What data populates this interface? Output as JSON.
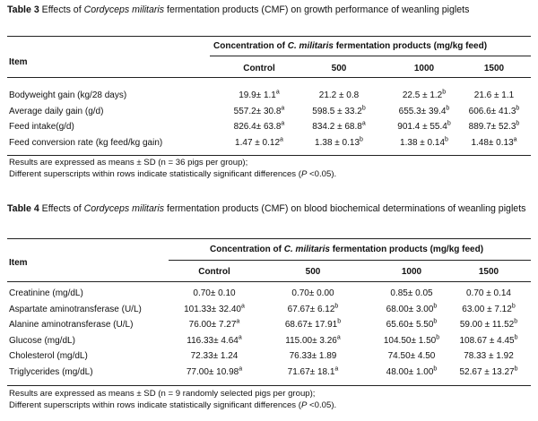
{
  "table3": {
    "label": "Table 3",
    "title_pre": "Effects of ",
    "title_italic": "Cordyceps militaris",
    "title_post": " fermentation products (CMF) on growth performance of weanling piglets",
    "item_header": "Item",
    "concentration_pre": "Concentration of ",
    "concentration_italic": "C. militaris",
    "concentration_post": " fermentation products (mg/kg feed)",
    "columns": [
      "Control",
      "500",
      "1000",
      "1500"
    ],
    "rows": [
      {
        "label": "Bodyweight gain (kg/28 days)",
        "cells": [
          {
            "v": "19.9± 1.1",
            "s": "a"
          },
          {
            "v": "21.2 ± 0.8",
            "s": ""
          },
          {
            "v": "22.5 ± 1.2",
            "s": "b"
          },
          {
            "v": "21.6 ± 1.1",
            "s": ""
          }
        ]
      },
      {
        "label": "Average daily gain (g/d)",
        "cells": [
          {
            "v": "557.2± 30.8",
            "s": "a"
          },
          {
            "v": "598.5 ± 33.2",
            "s": "b"
          },
          {
            "v": "655.3± 39.4",
            "s": "b"
          },
          {
            "v": "606.6± 41.3",
            "s": "b"
          }
        ]
      },
      {
        "label": "Feed intake(g/d)",
        "cells": [
          {
            "v": "826.4± 63.8",
            "s": "a"
          },
          {
            "v": "834.2 ± 68.8",
            "s": "a"
          },
          {
            "v": "901.4 ± 55.4",
            "s": "b"
          },
          {
            "v": "889.7± 52.3",
            "s": "b"
          }
        ]
      },
      {
        "label": "Feed conversion rate (kg feed/kg gain)",
        "cells": [
          {
            "v": "1.47 ± 0.12",
            "s": "a"
          },
          {
            "v": "1.38 ± 0.13",
            "s": "b"
          },
          {
            "v": "1.38 ± 0.14",
            "s": "b"
          },
          {
            "v": "1.48± 0.13",
            "s": "a"
          }
        ]
      }
    ],
    "note1": "Results are expressed as means ± SD (n = 36 pigs per group);",
    "note2_pre": "Different superscripts within rows indicate statistically significant differences (",
    "note2_italic": "P",
    "note2_post": " <0.05)."
  },
  "table4": {
    "label": "Table 4",
    "title_pre": "Effects of ",
    "title_italic": "Cordyceps militaris",
    "title_post": " fermentation products (CMF) on blood biochemical determinations of weanling piglets",
    "item_header": "Item",
    "concentration_pre": "Concentration of ",
    "concentration_italic": "C. militaris",
    "concentration_post": " fermentation products (mg/kg feed)",
    "columns": [
      "Control",
      "500",
      "1000",
      "1500"
    ],
    "rows": [
      {
        "label": "Creatinine (mg/dL)",
        "cells": [
          {
            "v": "0.70± 0.10",
            "s": ""
          },
          {
            "v": "0.70± 0.00",
            "s": ""
          },
          {
            "v": "0.85± 0.05",
            "s": ""
          },
          {
            "v": "0.70 ± 0.14",
            "s": ""
          }
        ]
      },
      {
        "label": "Aspartate aminotransferase (U/L)",
        "cells": [
          {
            "v": "101.33± 32.40",
            "s": "a"
          },
          {
            "v": "67.67± 6.12",
            "s": "b"
          },
          {
            "v": "68.00± 3.00",
            "s": "b"
          },
          {
            "v": "63.00 ± 7.12",
            "s": "b"
          }
        ]
      },
      {
        "label": "Alanine aminotransferase (U/L)",
        "cells": [
          {
            "v": "76.00± 7.27",
            "s": "a"
          },
          {
            "v": "68.67± 17.91",
            "s": "b"
          },
          {
            "v": "65.60± 5.50",
            "s": "b"
          },
          {
            "v": "59.00 ± 11.52",
            "s": "b"
          }
        ]
      },
      {
        "label": "Glucose (mg/dL)",
        "cells": [
          {
            "v": "116.33± 4.64",
            "s": "a"
          },
          {
            "v": "115.00± 3.26",
            "s": "a"
          },
          {
            "v": "104.50± 1.50",
            "s": "b"
          },
          {
            "v": "108.67 ± 4.45",
            "s": "b"
          }
        ]
      },
      {
        "label": "Cholesterol (mg/dL)",
        "cells": [
          {
            "v": "72.33± 1.24",
            "s": ""
          },
          {
            "v": "76.33± 1.89",
            "s": ""
          },
          {
            "v": "74.50± 4.50",
            "s": ""
          },
          {
            "v": "78.33 ± 1.92",
            "s": ""
          }
        ]
      },
      {
        "label": "Triglycerides (mg/dL)",
        "cells": [
          {
            "v": "77.00± 10.98",
            "s": "a"
          },
          {
            "v": "71.67± 18.1",
            "s": "a"
          },
          {
            "v": "48.00± 1.00",
            "s": "b"
          },
          {
            "v": "52.67 ± 13.27",
            "s": "b"
          }
        ]
      }
    ],
    "note1": "Results are expressed as means ± SD (n = 9 randomly selected pigs per group);",
    "note2_pre": "Different superscripts within rows indicate statistically significant differences (",
    "note2_italic": "P",
    "note2_post": " <0.05)."
  }
}
